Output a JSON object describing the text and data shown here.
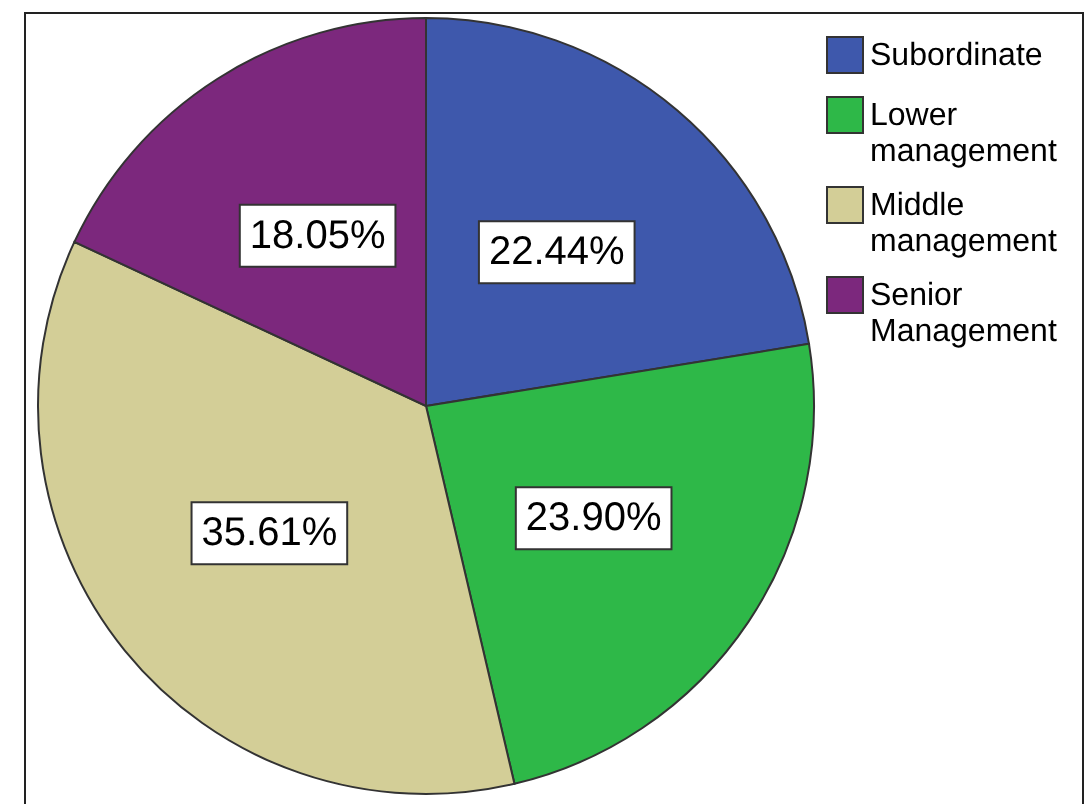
{
  "chart_data": {
    "type": "pie",
    "categories": [
      "Subordinate",
      "Lower management",
      "Middle management",
      "Senior Management"
    ],
    "values": [
      22.44,
      23.9,
      35.61,
      18.05
    ],
    "value_labels": [
      "22.44%",
      "23.90%",
      "35.61%",
      "18.05%"
    ],
    "colors": [
      "#3e58ac",
      "#2eb848",
      "#d3ce97",
      "#7c287d"
    ],
    "legend": "top right"
  }
}
